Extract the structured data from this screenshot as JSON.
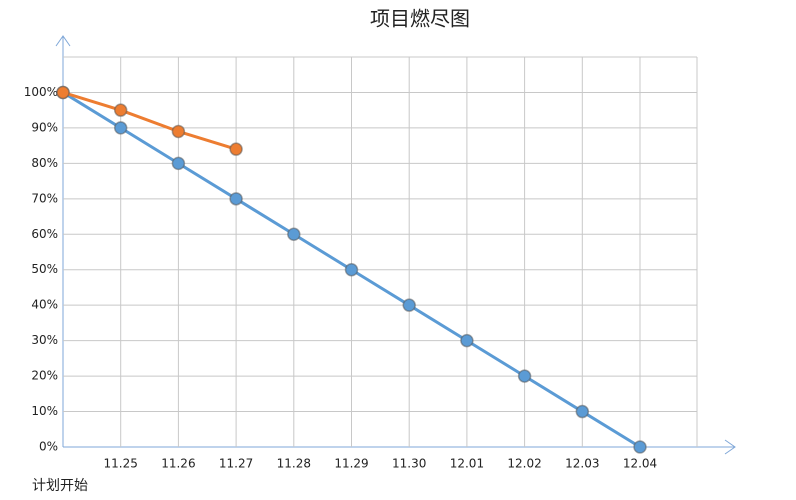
{
  "chart_data": {
    "type": "line",
    "title": "项目燃尽图",
    "categories": [
      "计划开始",
      "11.25",
      "11.26",
      "11.27",
      "11.28",
      "11.29",
      "11.30",
      "12.01",
      "12.02",
      "12.03",
      "12.04"
    ],
    "series": [
      {
        "color": "#5b9bd5",
        "values": [
          100,
          90,
          80,
          70,
          60,
          50,
          40,
          30,
          20,
          10,
          0
        ]
      },
      {
        "color": "#ed7d31",
        "values": [
          100,
          95,
          89,
          84,
          null,
          null,
          null,
          null,
          null,
          null,
          null
        ]
      }
    ],
    "ylim": [
      0,
      110
    ],
    "yticks": [
      {
        "value": 0,
        "label": "0%"
      },
      {
        "value": 10,
        "label": "10%"
      },
      {
        "value": 20,
        "label": "20%"
      },
      {
        "value": 30,
        "label": "30%"
      },
      {
        "value": 40,
        "label": "40%"
      },
      {
        "value": 50,
        "label": "50%"
      },
      {
        "value": 60,
        "label": "60%"
      },
      {
        "value": 70,
        "label": "70%"
      },
      {
        "value": 80,
        "label": "80%"
      },
      {
        "value": 90,
        "label": "90%"
      },
      {
        "value": 100,
        "label": "100%"
      }
    ],
    "grid": true
  }
}
